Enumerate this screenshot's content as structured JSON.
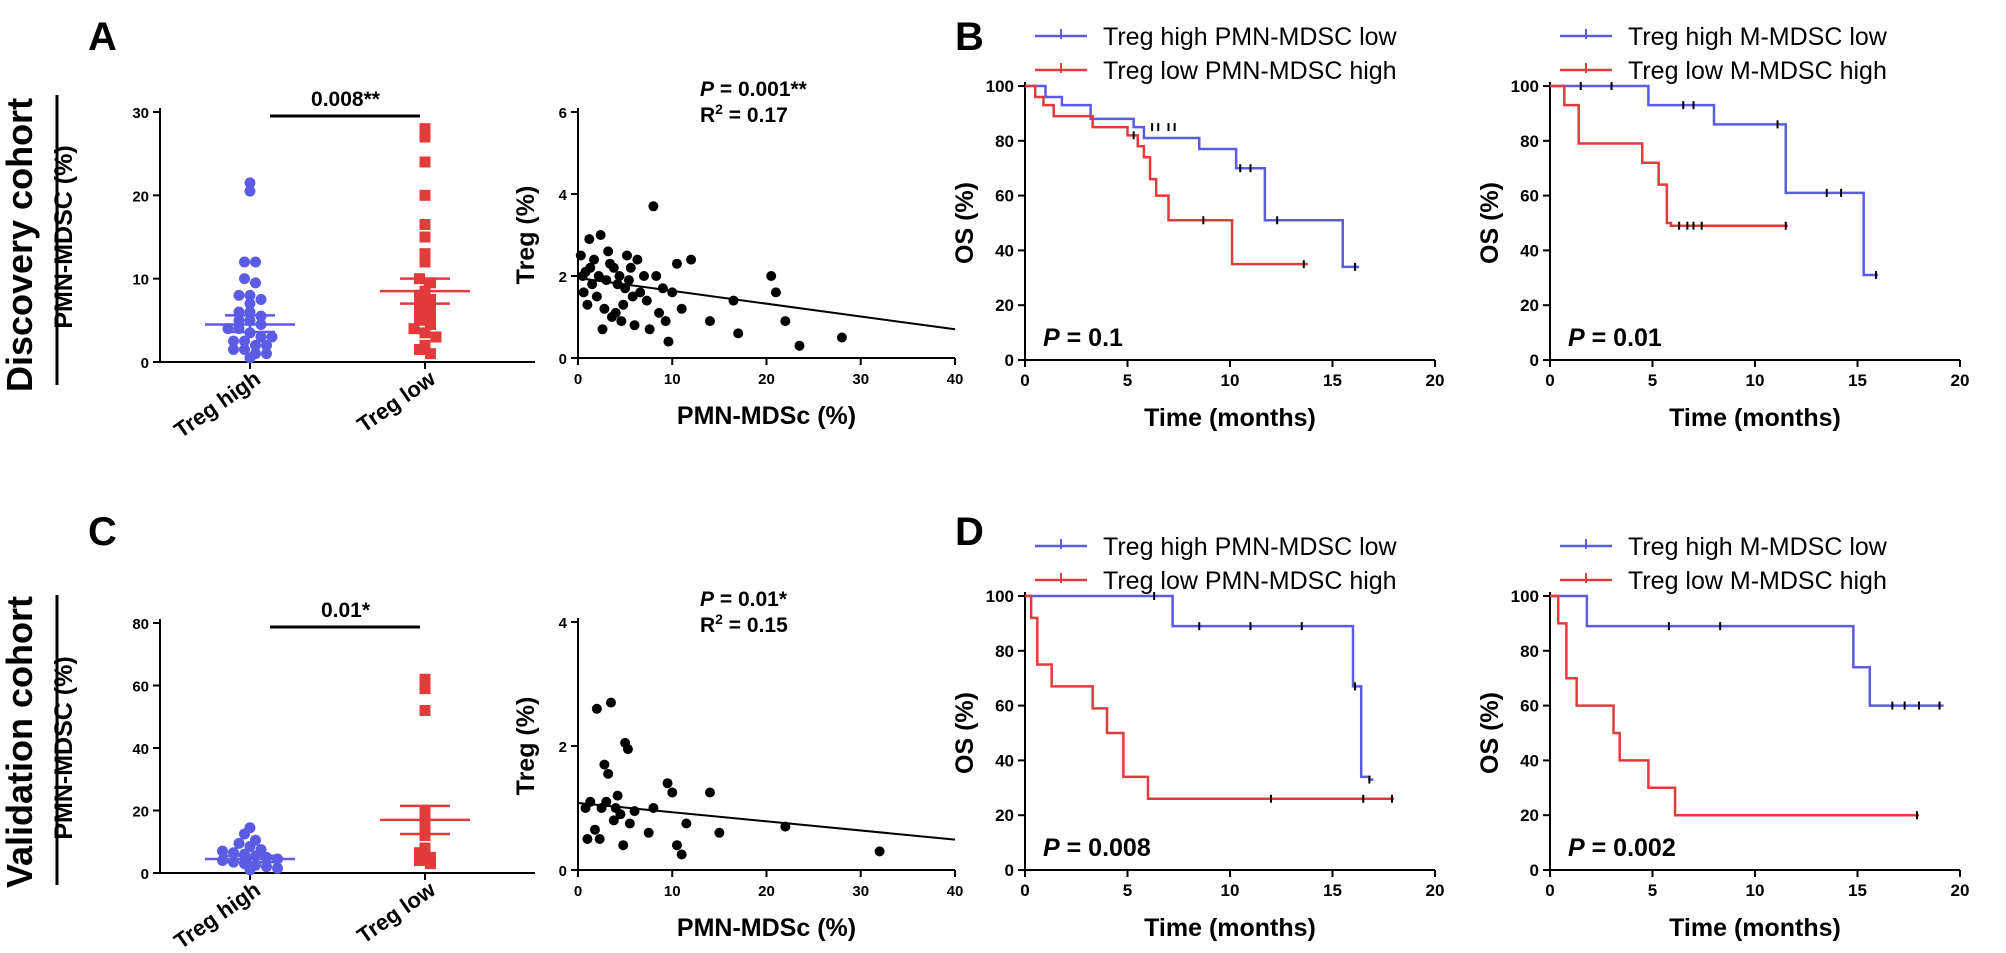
{
  "panels": {
    "a": "A",
    "b": "B",
    "c": "C",
    "d": "D"
  },
  "cohorts": {
    "discovery": "Discovery cohort",
    "validation": "Validation cohort"
  },
  "colors": {
    "blue": "#5b5be3",
    "red": "#e23b3b",
    "black": "#000000"
  },
  "chart_data": [
    {
      "id": "A-dot",
      "type": "scatter",
      "ylabel": "PMN-MDSC (%)",
      "categories": [
        "Treg high",
        "Treg low"
      ],
      "ylim": [
        0,
        30
      ],
      "yticks": [
        0,
        10,
        20,
        30
      ],
      "bracket_label": "0.008**",
      "groups": [
        {
          "name": "Treg high",
          "color": "#5b5be3",
          "marker": "circle",
          "values": [
            21.5,
            20.5,
            12,
            12,
            10,
            9.5,
            8,
            8,
            7.5,
            7,
            6,
            6,
            5.5,
            5,
            5,
            4.5,
            4,
            4,
            3.5,
            3,
            3,
            2.5,
            2.5,
            2,
            2,
            1.5,
            1.5,
            1,
            1,
            0.5
          ],
          "mean": 4.5,
          "sem_low": 3.6,
          "sem_high": 5.6
        },
        {
          "name": "Treg low",
          "color": "#e23b3b",
          "marker": "square",
          "values": [
            28,
            27,
            24,
            20,
            16.5,
            15,
            13,
            12,
            10,
            9.5,
            8.5,
            8,
            7.5,
            7,
            6.5,
            6,
            5.5,
            5,
            4.5,
            4,
            3.5,
            3,
            2,
            1.5,
            1
          ],
          "mean": 8.5,
          "sem_low": 7.0,
          "sem_high": 10.0
        }
      ]
    },
    {
      "id": "A-corr",
      "type": "scatter",
      "xlabel": "PMN-MDSc (%)",
      "ylabel": "Treg (%)",
      "xlim": [
        0,
        40
      ],
      "ylim": [
        0,
        6
      ],
      "xticks": [
        0,
        10,
        20,
        30,
        40
      ],
      "yticks": [
        0,
        2,
        4,
        6
      ],
      "p_prefix": "P",
      "p_value": " = 0.001**",
      "r2_prefix": "R",
      "r2_value": " = 0.17",
      "fit": [
        [
          0,
          1.95
        ],
        [
          40,
          0.7
        ]
      ],
      "points": [
        [
          0.3,
          2.5
        ],
        [
          0.5,
          2.0
        ],
        [
          0.6,
          1.6
        ],
        [
          0.8,
          2.1
        ],
        [
          1.0,
          1.3
        ],
        [
          1.2,
          2.9
        ],
        [
          1.3,
          2.2
        ],
        [
          1.5,
          1.8
        ],
        [
          1.7,
          2.4
        ],
        [
          2.0,
          1.5
        ],
        [
          2.2,
          2.0
        ],
        [
          2.4,
          3.0
        ],
        [
          2.6,
          0.7
        ],
        [
          2.8,
          1.2
        ],
        [
          3.0,
          1.9
        ],
        [
          3.2,
          2.6
        ],
        [
          3.4,
          2.3
        ],
        [
          3.6,
          1.0
        ],
        [
          3.8,
          2.2
        ],
        [
          4.0,
          1.1
        ],
        [
          4.2,
          1.8
        ],
        [
          4.4,
          2.0
        ],
        [
          4.6,
          0.9
        ],
        [
          4.8,
          1.3
        ],
        [
          5.0,
          1.7
        ],
        [
          5.2,
          2.5
        ],
        [
          5.4,
          1.9
        ],
        [
          5.6,
          2.2
        ],
        [
          5.8,
          1.5
        ],
        [
          6.0,
          0.8
        ],
        [
          6.3,
          2.4
        ],
        [
          6.6,
          1.6
        ],
        [
          7.0,
          2.0
        ],
        [
          7.3,
          1.4
        ],
        [
          7.6,
          0.7
        ],
        [
          8.0,
          3.7
        ],
        [
          8.3,
          2.0
        ],
        [
          8.6,
          1.1
        ],
        [
          9.0,
          1.7
        ],
        [
          9.3,
          0.9
        ],
        [
          9.6,
          0.4
        ],
        [
          10.0,
          1.6
        ],
        [
          10.5,
          2.3
        ],
        [
          11.0,
          1.2
        ],
        [
          12.0,
          2.4
        ],
        [
          14.0,
          0.9
        ],
        [
          16.5,
          1.4
        ],
        [
          17.0,
          0.6
        ],
        [
          20.5,
          2.0
        ],
        [
          21.0,
          1.6
        ],
        [
          22.0,
          0.9
        ],
        [
          23.5,
          0.3
        ],
        [
          28.0,
          0.5
        ]
      ]
    },
    {
      "id": "B-pmn",
      "type": "line",
      "xlabel": "Time (months)",
      "ylabel": "OS (%)",
      "xlim": [
        0,
        20
      ],
      "ylim": [
        0,
        100
      ],
      "xticks": [
        0,
        5,
        10,
        15,
        20
      ],
      "yticks": [
        0,
        20,
        40,
        60,
        80,
        100
      ],
      "p_prefix": "P",
      "p_value": " = 0.1",
      "series": [
        {
          "name": "Treg high PMN-MDSC low",
          "color": "#5b5be3",
          "steps": [
            [
              0,
              100
            ],
            [
              1,
              96
            ],
            [
              1.8,
              93
            ],
            [
              3.2,
              88
            ],
            [
              5.3,
              85
            ],
            [
              5.8,
              81
            ],
            [
              8.5,
              77
            ],
            [
              10.3,
              70
            ],
            [
              11.7,
              51
            ],
            [
              15.5,
              34
            ],
            [
              16.3,
              34
            ]
          ],
          "censors": [
            [
              6.2,
              85
            ],
            [
              6.5,
              85
            ],
            [
              7,
              85
            ],
            [
              7.3,
              85
            ],
            [
              10.5,
              70
            ],
            [
              11,
              70
            ],
            [
              12.3,
              51
            ],
            [
              16.1,
              34
            ]
          ]
        },
        {
          "name": "Treg low PMN-MDSC high",
          "color": "#e23b3b",
          "steps": [
            [
              0,
              100
            ],
            [
              0.5,
              96
            ],
            [
              0.9,
              93
            ],
            [
              1.4,
              89
            ],
            [
              3.3,
              85
            ],
            [
              5.0,
              82
            ],
            [
              5.5,
              78
            ],
            [
              5.8,
              74
            ],
            [
              6.1,
              66
            ],
            [
              6.4,
              60
            ],
            [
              7.0,
              51
            ],
            [
              10.1,
              35
            ],
            [
              13.8,
              35
            ]
          ],
          "censors": [
            [
              5.3,
              82
            ],
            [
              8.7,
              51
            ],
            [
              13.6,
              35
            ]
          ]
        }
      ]
    },
    {
      "id": "B-m",
      "type": "line",
      "xlabel": "Time (months)",
      "ylabel": "OS (%)",
      "xlim": [
        0,
        20
      ],
      "ylim": [
        0,
        100
      ],
      "xticks": [
        0,
        5,
        10,
        15,
        20
      ],
      "yticks": [
        0,
        20,
        40,
        60,
        80,
        100
      ],
      "p_prefix": "P",
      "p_value": " = 0.01",
      "series": [
        {
          "name": "Treg high M-MDSC low",
          "color": "#5b5be3",
          "steps": [
            [
              0,
              100
            ],
            [
              4.8,
              93
            ],
            [
              8.0,
              86
            ],
            [
              11.5,
              61
            ],
            [
              15.3,
              31
            ],
            [
              16.0,
              31
            ]
          ],
          "censors": [
            [
              1.5,
              100
            ],
            [
              3.0,
              100
            ],
            [
              6.5,
              93
            ],
            [
              7,
              93
            ],
            [
              11.1,
              86
            ],
            [
              13.5,
              61
            ],
            [
              14.2,
              61
            ],
            [
              15.9,
              31
            ]
          ]
        },
        {
          "name": "Treg low M-MDSC high",
          "color": "#e23b3b",
          "steps": [
            [
              0,
              100
            ],
            [
              0.7,
              93
            ],
            [
              1.4,
              79
            ],
            [
              4.5,
              72
            ],
            [
              5.3,
              64
            ],
            [
              5.7,
              50
            ],
            [
              5.9,
              49
            ],
            [
              11.6,
              49
            ]
          ],
          "censors": [
            [
              6.3,
              49
            ],
            [
              6.7,
              49
            ],
            [
              7.0,
              49
            ],
            [
              7.4,
              49
            ],
            [
              11.5,
              49
            ]
          ]
        }
      ]
    },
    {
      "id": "C-dot",
      "type": "scatter",
      "ylabel": "PMN-MDSC (%)",
      "categories": [
        "Treg high",
        "Treg low"
      ],
      "ylim": [
        0,
        80
      ],
      "yticks": [
        0,
        20,
        40,
        60,
        80
      ],
      "bracket_label": "0.01*",
      "groups": [
        {
          "name": "Treg high",
          "color": "#5b5be3",
          "marker": "circle",
          "values": [
            14.5,
            12.5,
            10.5,
            9.5,
            8.5,
            7.5,
            7,
            6.5,
            6,
            5.5,
            5,
            4.5,
            4,
            3.5,
            3,
            2.5,
            2,
            1.5,
            1
          ],
          "mean": 4.5,
          "sem_low": 3.5,
          "sem_high": 5.5
        },
        {
          "name": "Treg low",
          "color": "#e23b3b",
          "marker": "square",
          "values": [
            62,
            59,
            52,
            20,
            18,
            15,
            12,
            8,
            6.5,
            5,
            4,
            3
          ],
          "mean": 17,
          "sem_low": 12.5,
          "sem_high": 21.5
        }
      ]
    },
    {
      "id": "C-corr",
      "type": "scatter",
      "xlabel": "PMN-MDSc (%)",
      "ylabel": "Treg (%)",
      "xlim": [
        0,
        40
      ],
      "ylim": [
        0,
        4
      ],
      "xticks": [
        0,
        10,
        20,
        30,
        40
      ],
      "yticks": [
        0,
        2,
        4
      ],
      "p_prefix": "P",
      "p_value": " = 0.01*",
      "r2_prefix": "R",
      "r2_value": " = 0.15",
      "fit": [
        [
          0,
          1.08
        ],
        [
          40,
          0.49
        ]
      ],
      "points": [
        [
          0.8,
          1.0
        ],
        [
          1.0,
          0.5
        ],
        [
          1.3,
          1.1
        ],
        [
          1.8,
          0.65
        ],
        [
          2.0,
          2.6
        ],
        [
          2.3,
          0.5
        ],
        [
          2.5,
          1.0
        ],
        [
          2.8,
          1.7
        ],
        [
          3.0,
          1.1
        ],
        [
          3.2,
          1.55
        ],
        [
          3.5,
          2.7
        ],
        [
          3.8,
          0.8
        ],
        [
          4.0,
          1.0
        ],
        [
          4.2,
          1.2
        ],
        [
          4.5,
          0.9
        ],
        [
          4.8,
          0.4
        ],
        [
          5.0,
          2.05
        ],
        [
          5.3,
          1.95
        ],
        [
          5.5,
          0.75
        ],
        [
          6.0,
          0.95
        ],
        [
          7.5,
          0.6
        ],
        [
          8.0,
          1.0
        ],
        [
          9.5,
          1.4
        ],
        [
          10.0,
          1.25
        ],
        [
          10.5,
          0.4
        ],
        [
          11.0,
          0.25
        ],
        [
          11.5,
          0.75
        ],
        [
          14.0,
          1.25
        ],
        [
          15.0,
          0.6
        ],
        [
          22.0,
          0.7
        ],
        [
          32.0,
          0.3
        ]
      ]
    },
    {
      "id": "D-pmn",
      "type": "line",
      "xlabel": "Time (months)",
      "ylabel": "OS (%)",
      "xlim": [
        0,
        20
      ],
      "ylim": [
        0,
        100
      ],
      "xticks": [
        0,
        5,
        10,
        15,
        20
      ],
      "yticks": [
        0,
        20,
        40,
        60,
        80,
        100
      ],
      "p_prefix": "P",
      "p_value": " = 0.008",
      "series": [
        {
          "name": "Treg high PMN-MDSC low",
          "color": "#5b5be3",
          "steps": [
            [
              0,
              100
            ],
            [
              7.2,
              89
            ],
            [
              16.0,
              67
            ],
            [
              16.4,
              34
            ],
            [
              16.8,
              33
            ],
            [
              17.0,
              33
            ]
          ],
          "censors": [
            [
              6.3,
              100
            ],
            [
              8.5,
              89
            ],
            [
              11,
              89
            ],
            [
              13.5,
              89
            ],
            [
              16.1,
              67
            ],
            [
              16.8,
              33
            ]
          ]
        },
        {
          "name": "Treg low PMN-MDSC high",
          "color": "#e23b3b",
          "steps": [
            [
              0,
              100
            ],
            [
              0.3,
              92
            ],
            [
              0.6,
              75
            ],
            [
              1.3,
              67
            ],
            [
              3.3,
              59
            ],
            [
              4.0,
              50
            ],
            [
              4.8,
              34
            ],
            [
              6.0,
              26
            ],
            [
              18.0,
              26
            ]
          ],
          "censors": [
            [
              12.0,
              26
            ],
            [
              16.5,
              26
            ],
            [
              17.9,
              26
            ]
          ]
        }
      ]
    },
    {
      "id": "D-m",
      "type": "line",
      "xlabel": "Time (months)",
      "ylabel": "OS (%)",
      "xlim": [
        0,
        20
      ],
      "ylim": [
        0,
        100
      ],
      "xticks": [
        0,
        5,
        10,
        15,
        20
      ],
      "yticks": [
        0,
        20,
        40,
        60,
        80,
        100
      ],
      "p_prefix": "P",
      "p_value": " = 0.002",
      "series": [
        {
          "name": "Treg high M-MDSC low",
          "color": "#5b5be3",
          "steps": [
            [
              0,
              100
            ],
            [
              1.8,
              89
            ],
            [
              14.8,
              74
            ],
            [
              15.6,
              60
            ],
            [
              19.2,
              60
            ]
          ],
          "censors": [
            [
              5.8,
              89
            ],
            [
              8.3,
              89
            ],
            [
              16.7,
              60
            ],
            [
              17.3,
              60
            ],
            [
              18,
              60
            ],
            [
              19.0,
              60
            ]
          ]
        },
        {
          "name": "Treg low M-MDSC high",
          "color": "#e23b3b",
          "steps": [
            [
              0,
              100
            ],
            [
              0.4,
              90
            ],
            [
              0.8,
              70
            ],
            [
              1.3,
              60
            ],
            [
              3.1,
              50
            ],
            [
              3.4,
              40
            ],
            [
              4.8,
              30
            ],
            [
              6.1,
              20
            ],
            [
              18.0,
              20
            ]
          ],
          "censors": [
            [
              17.9,
              20
            ]
          ]
        }
      ]
    }
  ]
}
